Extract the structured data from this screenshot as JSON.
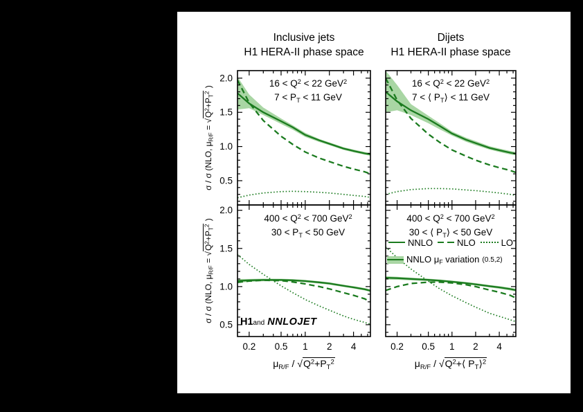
{
  "style": {
    "page_bg": "#000000",
    "figure_bg": "#ffffff",
    "line_color": "#1b7b1f",
    "band_color": "#a9d6a4",
    "frame_color": "#000000",
    "text_color": "#000000"
  },
  "header": {
    "col1_title_line1": "Inclusive jets",
    "col1_title_line2": "H1 HERA-II phase space",
    "col2_title_line1": "Dijets",
    "col2_title_line2": "H1 HERA-II phase space"
  },
  "labels": {
    "ylabel": "σ / σ (NLO, μ_{R/F} = r{Q^{2}+P_{T}^{2}} )",
    "xlabel_left": "μ_{R/F} / r{Q^{2}+P_{T}^{2}}",
    "xlabel_right": "μ_{R/F} / r{Q^{2}+⟨ P_{T}⟩^{2}}",
    "watermark_h1": "H1",
    "watermark_and": "and",
    "watermark_nnlojet": "NNLOJET"
  },
  "legend": {
    "nnlo_label": "NNLO",
    "nlo_label": "NLO",
    "lo_label": "LO",
    "band_label": "NNLO μ_{F} variation",
    "band_suffix": "(0.5,2)"
  },
  "chart_data": [
    {
      "id": "top-left",
      "type": "line",
      "annotation_line1": "16 < Q^{2} < 22 GeV^{2}",
      "annotation_line2": "7 < P_{T} < 11 GeV",
      "x_scale": "log",
      "x_range": [
        0.143,
        6.5
      ],
      "y_range": [
        0.145,
        2.11
      ],
      "x_ticks": [
        0.2,
        0.5,
        1,
        2,
        4
      ],
      "x_tick_labels": [
        "0.2",
        "0.5",
        "1",
        "2",
        "4"
      ],
      "x_minor_ticks": [
        0.3,
        0.4,
        0.6,
        0.7,
        0.8,
        0.9,
        3,
        5,
        6
      ],
      "y_ticks": [
        0.5,
        1.0,
        1.5,
        2.0
      ],
      "y_tick_labels": [
        "0.5",
        "1.0",
        "1.5",
        "2.0"
      ],
      "x": [
        0.143,
        0.2,
        0.3,
        0.5,
        0.7,
        1,
        1.5,
        2,
        3,
        4,
        5.5,
        6.5
      ],
      "series": [
        {
          "name": "NNLO muF variation",
          "type": "band",
          "hi": [
            2.02,
            1.76,
            1.57,
            1.41,
            1.31,
            1.2,
            1.11,
            1.06,
            0.99,
            0.955,
            0.92,
            0.905
          ],
          "lo": [
            1.54,
            1.56,
            1.46,
            1.33,
            1.245,
            1.14,
            1.065,
            1.02,
            0.95,
            0.915,
            0.88,
            0.865
          ]
        },
        {
          "name": "LO",
          "type": "dotted",
          "y": [
            0.25,
            0.29,
            0.32,
            0.34,
            0.345,
            0.34,
            0.33,
            0.32,
            0.3,
            0.285,
            0.27,
            0.255
          ]
        },
        {
          "name": "NLO",
          "type": "dashed",
          "y": [
            1.97,
            1.64,
            1.38,
            1.15,
            1.03,
            0.92,
            0.83,
            0.78,
            0.71,
            0.67,
            0.63,
            0.6
          ]
        },
        {
          "name": "NNLO",
          "type": "solid",
          "y": [
            1.78,
            1.63,
            1.5,
            1.37,
            1.28,
            1.17,
            1.09,
            1.04,
            0.97,
            0.935,
            0.9,
            0.885
          ]
        }
      ]
    },
    {
      "id": "top-right",
      "type": "line",
      "annotation_line1": "16 < Q^{2} < 22 GeV^{2}",
      "annotation_line2": "7 < ⟨ P_{T}⟩ < 11 GeV",
      "x_scale": "log",
      "x_range": [
        0.143,
        6.5
      ],
      "y_range": [
        0.145,
        2.11
      ],
      "x_ticks": [
        0.2,
        0.5,
        1,
        2,
        4
      ],
      "x_tick_labels": [
        "0.2",
        "0.5",
        "1",
        "2",
        "4"
      ],
      "x_minor_ticks": [
        0.3,
        0.4,
        0.6,
        0.7,
        0.8,
        0.9,
        3,
        5,
        6
      ],
      "y_ticks": [
        0.5,
        1.0,
        1.5,
        2.0
      ],
      "y_tick_labels": [
        "0.5",
        "1.0",
        "1.5",
        "2.0"
      ],
      "x": [
        0.143,
        0.2,
        0.3,
        0.5,
        0.7,
        1,
        1.5,
        2,
        3,
        4,
        5.5,
        6.5
      ],
      "series": [
        {
          "name": "NNLO muF variation",
          "type": "band",
          "hi": [
            2.11,
            1.9,
            1.62,
            1.45,
            1.34,
            1.22,
            1.13,
            1.08,
            1.005,
            0.97,
            0.935,
            0.92
          ],
          "lo": [
            1.5,
            1.53,
            1.46,
            1.34,
            1.25,
            1.16,
            1.07,
            1.02,
            0.955,
            0.92,
            0.885,
            0.87
          ]
        },
        {
          "name": "LO",
          "type": "dotted",
          "y": [
            0.3,
            0.34,
            0.37,
            0.385,
            0.385,
            0.38,
            0.365,
            0.355,
            0.335,
            0.32,
            0.3,
            0.285
          ]
        },
        {
          "name": "NLO",
          "type": "dashed",
          "y": [
            2.0,
            1.68,
            1.41,
            1.18,
            1.06,
            0.95,
            0.86,
            0.8,
            0.73,
            0.69,
            0.65,
            0.62
          ]
        },
        {
          "name": "NNLO",
          "type": "solid",
          "y": [
            1.8,
            1.66,
            1.53,
            1.4,
            1.3,
            1.19,
            1.1,
            1.05,
            0.98,
            0.945,
            0.91,
            0.895
          ]
        }
      ]
    },
    {
      "id": "bottom-left",
      "type": "line",
      "annotation_line1": "400 < Q^{2} < 700 GeV^{2}",
      "annotation_line2": "30 < P_{T} < 50 GeV",
      "x_scale": "log",
      "x_range": [
        0.143,
        6.5
      ],
      "y_range": [
        0.345,
        2.07
      ],
      "x_ticks": [
        0.2,
        0.5,
        1,
        2,
        4
      ],
      "x_tick_labels": [
        "0.2",
        "0.5",
        "1",
        "2",
        "4"
      ],
      "x_minor_ticks": [
        0.3,
        0.4,
        0.6,
        0.7,
        0.8,
        0.9,
        3,
        5,
        6
      ],
      "y_ticks": [
        0.5,
        1.0,
        1.5,
        2.0
      ],
      "y_tick_labels": [
        "0.5",
        "1.0",
        "1.5",
        "2.0"
      ],
      "x": [
        0.143,
        0.2,
        0.3,
        0.5,
        0.7,
        1,
        1.5,
        2,
        3,
        4,
        5.5,
        6.5
      ],
      "series": [
        {
          "name": "NNLO muF variation",
          "type": "band",
          "hi": [
            1.1,
            1.1,
            1.103,
            1.102,
            1.097,
            1.087,
            1.07,
            1.055,
            1.025,
            1.005,
            0.98,
            0.965
          ],
          "lo": [
            1.05,
            1.062,
            1.07,
            1.072,
            1.067,
            1.057,
            1.04,
            1.025,
            0.995,
            0.975,
            0.95,
            0.93
          ]
        },
        {
          "name": "LO",
          "type": "dotted",
          "y": [
            1.42,
            1.29,
            1.16,
            1.01,
            0.92,
            0.83,
            0.745,
            0.69,
            0.615,
            0.57,
            0.53,
            0.505
          ]
        },
        {
          "name": "NLO",
          "type": "dashed",
          "y": [
            1.055,
            1.072,
            1.083,
            1.078,
            1.06,
            1.035,
            1.0,
            0.97,
            0.92,
            0.885,
            0.84,
            0.8
          ]
        },
        {
          "name": "NNLO",
          "type": "solid",
          "y": [
            1.075,
            1.082,
            1.087,
            1.087,
            1.082,
            1.072,
            1.055,
            1.04,
            1.01,
            0.99,
            0.965,
            0.945
          ]
        }
      ]
    },
    {
      "id": "bottom-right",
      "type": "line",
      "annotation_line1": "400 < Q^{2} < 700 GeV^{2}",
      "annotation_line2": "30 < ⟨ P_{T}⟩ < 50 GeV",
      "x_scale": "log",
      "x_range": [
        0.143,
        6.5
      ],
      "y_range": [
        0.345,
        2.07
      ],
      "x_ticks": [
        0.2,
        0.5,
        1,
        2,
        4
      ],
      "x_tick_labels": [
        "0.2",
        "0.5",
        "1",
        "2",
        "4"
      ],
      "x_minor_ticks": [
        0.3,
        0.4,
        0.6,
        0.7,
        0.8,
        0.9,
        3,
        5,
        6
      ],
      "y_ticks": [
        0.5,
        1.0,
        1.5,
        2.0
      ],
      "y_tick_labels": [
        "0.5",
        "1.0",
        "1.5",
        "2.0"
      ],
      "x": [
        0.143,
        0.2,
        0.3,
        0.5,
        0.7,
        1,
        1.5,
        2,
        3,
        4,
        5.5,
        6.5
      ],
      "series": [
        {
          "name": "NNLO muF variation",
          "type": "band",
          "hi": [
            1.135,
            1.128,
            1.117,
            1.103,
            1.093,
            1.078,
            1.06,
            1.045,
            1.02,
            1.005,
            0.985,
            0.97
          ],
          "lo": [
            1.092,
            1.09,
            1.082,
            1.072,
            1.062,
            1.047,
            1.03,
            1.015,
            0.99,
            0.972,
            0.95,
            0.935
          ]
        },
        {
          "name": "LO",
          "type": "dotted",
          "y": [
            1.52,
            1.38,
            1.23,
            1.07,
            0.97,
            0.88,
            0.79,
            0.73,
            0.65,
            0.61,
            0.565,
            0.54
          ]
        },
        {
          "name": "NLO",
          "type": "dashed",
          "y": [
            0.95,
            1.0,
            1.04,
            1.058,
            1.058,
            1.048,
            1.025,
            1.0,
            0.955,
            0.925,
            0.885,
            0.85
          ]
        },
        {
          "name": "NNLO",
          "type": "solid",
          "y": [
            1.115,
            1.11,
            1.1,
            1.088,
            1.078,
            1.063,
            1.045,
            1.03,
            1.005,
            0.99,
            0.968,
            0.953
          ]
        }
      ]
    }
  ]
}
